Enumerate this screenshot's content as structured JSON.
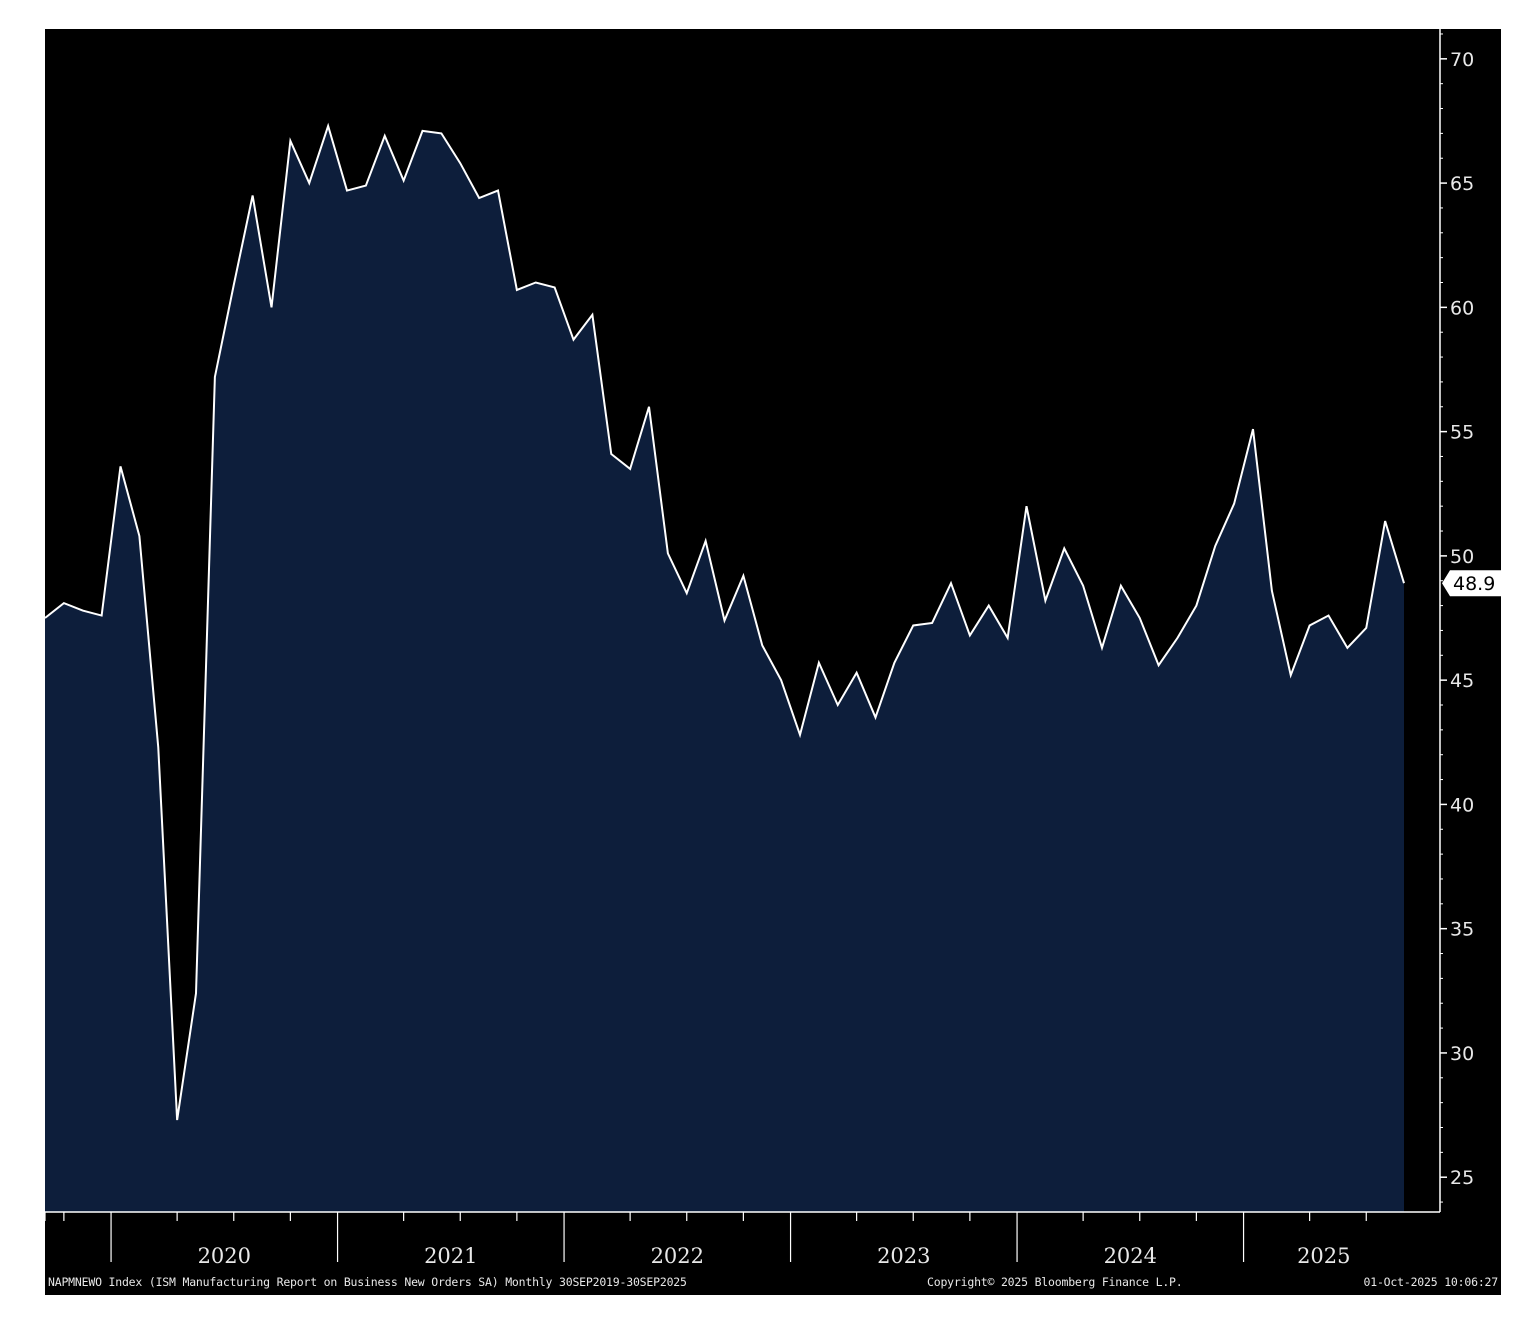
{
  "chart_data": {
    "type": "area",
    "title": "",
    "xlabel": "",
    "ylabel": "",
    "series": [
      {
        "name": "",
        "color": "#ffffff",
        "fill": "#0d1e3b",
        "x": [
          "2019-09",
          "2019-10",
          "2019-11",
          "2019-12",
          "2020-01",
          "2020-02",
          "2020-03",
          "2020-04",
          "2020-05",
          "2020-06",
          "2020-07",
          "2020-08",
          "2020-09",
          "2020-10",
          "2020-11",
          "2020-12",
          "2021-01",
          "2021-02",
          "2021-03",
          "2021-04",
          "2021-05",
          "2021-06",
          "2021-07",
          "2021-08",
          "2021-09",
          "2021-10",
          "2021-11",
          "2021-12",
          "2022-01",
          "2022-02",
          "2022-03",
          "2022-04",
          "2022-05",
          "2022-06",
          "2022-07",
          "2022-08",
          "2022-09",
          "2022-10",
          "2022-11",
          "2022-12",
          "2023-01",
          "2023-02",
          "2023-03",
          "2023-04",
          "2023-05",
          "2023-06",
          "2023-07",
          "2023-08",
          "2023-09",
          "2023-10",
          "2023-11",
          "2023-12",
          "2024-01",
          "2024-02",
          "2024-03",
          "2024-04",
          "2024-05",
          "2024-06",
          "2024-07",
          "2024-08",
          "2024-09",
          "2024-10",
          "2024-11",
          "2024-12",
          "2025-01",
          "2025-02",
          "2025-03",
          "2025-04",
          "2025-05",
          "2025-06",
          "2025-07",
          "2025-08",
          "2025-09"
        ],
        "values": [
          47.5,
          48.1,
          47.8,
          47.6,
          53.6,
          50.8,
          42.3,
          27.3,
          32.4,
          57.2,
          60.9,
          64.5,
          60.0,
          66.7,
          65.0,
          67.3,
          64.7,
          64.9,
          66.9,
          65.1,
          67.1,
          67.0,
          65.8,
          64.4,
          64.7,
          60.7,
          61.0,
          60.8,
          58.7,
          59.7,
          54.1,
          53.5,
          56.0,
          50.1,
          48.5,
          50.6,
          47.4,
          49.2,
          46.4,
          45.0,
          42.8,
          45.7,
          44.0,
          45.3,
          43.5,
          45.7,
          47.2,
          47.3,
          48.9,
          46.8,
          48.0,
          46.7,
          52.0,
          48.2,
          50.3,
          48.8,
          46.3,
          48.8,
          47.5,
          45.6,
          46.7,
          48.0,
          50.4,
          52.1,
          55.1,
          48.6,
          45.2,
          47.2,
          47.6,
          46.3,
          47.1,
          51.4,
          48.9
        ]
      }
    ],
    "yticks": [
      25,
      30,
      35,
      40,
      45,
      50,
      55,
      60,
      65,
      70
    ],
    "ylim": [
      23.6,
      71.2
    ],
    "year_labels": [
      {
        "label": "2020",
        "start": "2020-01",
        "end": "2020-12"
      },
      {
        "label": "2021",
        "start": "2021-01",
        "end": "2021-12"
      },
      {
        "label": "2022",
        "start": "2022-01",
        "end": "2022-12"
      },
      {
        "label": "2023",
        "start": "2023-01",
        "end": "2023-12"
      },
      {
        "label": "2024",
        "start": "2024-01",
        "end": "2024-12"
      },
      {
        "label": "2025",
        "start": "2025-01",
        "end": "2025-09"
      }
    ],
    "last_value_label": "48.9",
    "grid": false
  },
  "footer": {
    "left": "NAPMNEWO Index (ISM Manufacturing Report on Business New Orders SA) Monthly 30SEP2019-30SEP2025",
    "center": "Copyright© 2025 Bloomberg Finance L.P.",
    "right": "01-Oct-2025 10:06:27"
  }
}
